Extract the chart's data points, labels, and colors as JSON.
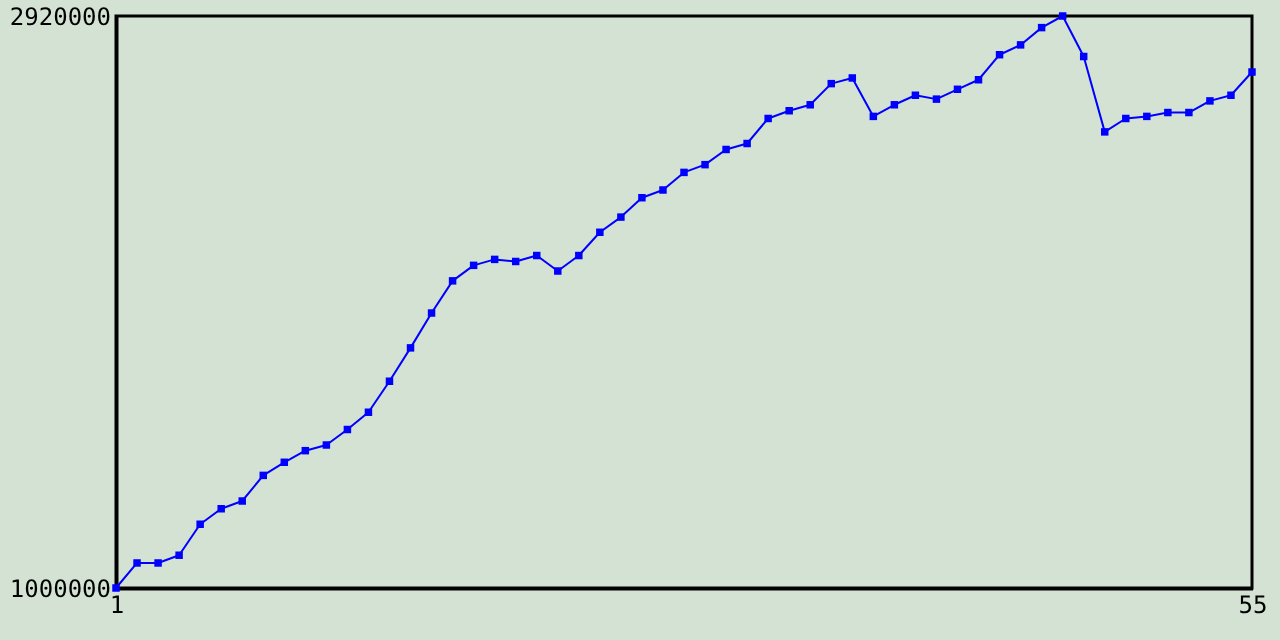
{
  "chart_data": {
    "type": "line",
    "x": [
      1,
      2,
      3,
      4,
      5,
      6,
      7,
      8,
      9,
      10,
      11,
      12,
      13,
      14,
      15,
      16,
      17,
      18,
      19,
      20,
      21,
      22,
      23,
      24,
      25,
      26,
      27,
      28,
      29,
      30,
      31,
      32,
      33,
      34,
      35,
      36,
      37,
      38,
      39,
      40,
      41,
      42,
      43,
      44,
      45,
      46,
      47,
      48,
      49,
      50,
      51,
      52,
      53,
      54,
      55
    ],
    "series": [
      {
        "color": "#0000ff",
        "values": [
          1000000,
          1084000,
          1084000,
          1110000,
          1214000,
          1266000,
          1292000,
          1378000,
          1422000,
          1461000,
          1480000,
          1532000,
          1590000,
          1694000,
          1806000,
          1923000,
          2031000,
          2083000,
          2103000,
          2096000,
          2116000,
          2064000,
          2116000,
          2194000,
          2245000,
          2310000,
          2336000,
          2395000,
          2421000,
          2472000,
          2492000,
          2576000,
          2602000,
          2622000,
          2693000,
          2712000,
          2583000,
          2622000,
          2654000,
          2641000,
          2674000,
          2706000,
          2790000,
          2823000,
          2881000,
          2920000,
          2784000,
          2531000,
          2576000,
          2583000,
          2596000,
          2596000,
          2635000,
          2654000,
          2732000
        ]
      }
    ],
    "xlim": [
      1,
      55
    ],
    "xticks": [
      1,
      55
    ],
    "ylim": [
      1000000,
      2920000
    ],
    "yticks": [
      1000000,
      2920000
    ],
    "grid": false,
    "marker": "square",
    "line_style": "solid"
  }
}
